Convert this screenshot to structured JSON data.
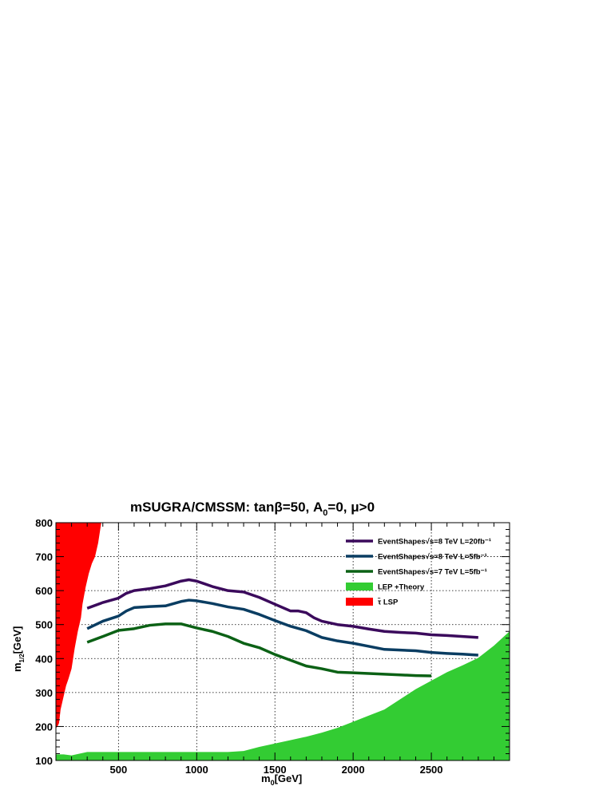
{
  "chart_data": {
    "type": "line",
    "title": "mSUGRA/CMSSM: tanβ=50, A₀=0, μ>0",
    "title_parts": {
      "main": "mSUGRA/CMSSM: tanβ=50, A",
      "sub": "0",
      "rest": "=0, μ>0"
    },
    "xlabel": "m₀[GeV]",
    "xlabel_parts": {
      "main": "m",
      "sub": "0",
      "rest": "[GeV]"
    },
    "ylabel": "m₁₂[GeV]",
    "ylabel_parts": {
      "main": "m",
      "sub": "1/2",
      "rest": "[GeV]"
    },
    "xlim": [
      100,
      3000
    ],
    "ylim": [
      100,
      800
    ],
    "x_ticks": [
      "500",
      "1000",
      "1500",
      "2000",
      "2500"
    ],
    "y_ticks": [
      "100",
      "200",
      "300",
      "400",
      "500",
      "600",
      "700",
      "800"
    ],
    "grid": true,
    "legend_position": "top-right",
    "series": [
      {
        "name": "EventShapes√s=8 TeV L=20fb⁻¹",
        "color": "#3b0a5c",
        "x": [
          300,
          400,
          500,
          550,
          600,
          700,
          800,
          900,
          950,
          1000,
          1100,
          1200,
          1300,
          1400,
          1500,
          1600,
          1650,
          1700,
          1750,
          1800,
          1900,
          2000,
          2100,
          2200,
          2300,
          2400,
          2500,
          2600,
          2700,
          2800
        ],
        "y": [
          548,
          565,
          578,
          592,
          600,
          606,
          614,
          628,
          632,
          628,
          612,
          600,
          596,
          580,
          560,
          540,
          540,
          535,
          520,
          510,
          500,
          495,
          487,
          480,
          477,
          475,
          470,
          468,
          465,
          462
        ]
      },
      {
        "name": "EventShapes√s=8 TeV L=5fb⁻¹",
        "color": "#0a3d62",
        "x": [
          300,
          400,
          500,
          550,
          600,
          700,
          800,
          900,
          950,
          1000,
          1100,
          1200,
          1300,
          1400,
          1500,
          1600,
          1700,
          1800,
          1900,
          2000,
          2100,
          2200,
          2300,
          2400,
          2500,
          2600,
          2700,
          2800
        ],
        "y": [
          488,
          510,
          525,
          540,
          550,
          553,
          555,
          568,
          572,
          570,
          562,
          552,
          545,
          530,
          512,
          495,
          482,
          462,
          452,
          445,
          436,
          427,
          425,
          423,
          418,
          415,
          413,
          410
        ]
      },
      {
        "name": "EventShapes√s=7 TeV L=5fb⁻¹",
        "color": "#0b6115",
        "x": [
          300,
          400,
          500,
          600,
          700,
          800,
          900,
          1000,
          1100,
          1200,
          1300,
          1400,
          1500,
          1600,
          1700,
          1800,
          1900,
          2000,
          2100,
          2200,
          2300,
          2400,
          2500
        ],
        "y": [
          448,
          465,
          483,
          488,
          498,
          502,
          502,
          490,
          480,
          465,
          445,
          432,
          412,
          395,
          378,
          370,
          360,
          358,
          356,
          354,
          352,
          350,
          349
        ]
      }
    ],
    "regions": [
      {
        "name": "LEP +Theory",
        "color": "#33cc33",
        "boundary_x": [
          100,
          150,
          200,
          250,
          300,
          400,
          600,
          800,
          1000,
          1200,
          1300,
          1400,
          1500,
          1600,
          1700,
          1800,
          1900,
          2000,
          2100,
          2200,
          2300,
          2400,
          2500,
          2600,
          2700,
          2800,
          2900,
          3000
        ],
        "boundary_y": [
          118,
          118,
          115,
          120,
          125,
          125,
          125,
          125,
          125,
          125,
          128,
          140,
          150,
          160,
          170,
          182,
          196,
          214,
          232,
          250,
          280,
          310,
          335,
          360,
          380,
          402,
          438,
          480
        ]
      },
      {
        "name": "τ̃ LSP",
        "color": "#ff0000",
        "boundary_x": [
          100,
          110,
          120,
          130,
          150,
          165,
          180,
          200,
          220,
          240,
          260,
          270,
          290,
          310,
          330,
          350,
          370,
          390
        ],
        "boundary_y": [
          195,
          200,
          210,
          250,
          290,
          320,
          340,
          370,
          430,
          480,
          520,
          560,
          610,
          650,
          680,
          700,
          740,
          800
        ]
      }
    ],
    "legend_entries": [
      {
        "name": "EventShapes√s=8 TeV L=20fb⁻¹",
        "color": "#3b0a5c",
        "kind": "line"
      },
      {
        "name": "EventShapes√s=8 TeV L=5fb⁻¹",
        "color": "#0a3d62",
        "kind": "line"
      },
      {
        "name": "EventShapes√s=7 TeV L=5fb⁻¹",
        "color": "#0b6115",
        "kind": "line"
      },
      {
        "name": "LEP +Theory",
        "color": "#33cc33",
        "kind": "fill"
      },
      {
        "name": "τ̃ LSP",
        "color": "#ff0000",
        "kind": "fill"
      }
    ]
  }
}
